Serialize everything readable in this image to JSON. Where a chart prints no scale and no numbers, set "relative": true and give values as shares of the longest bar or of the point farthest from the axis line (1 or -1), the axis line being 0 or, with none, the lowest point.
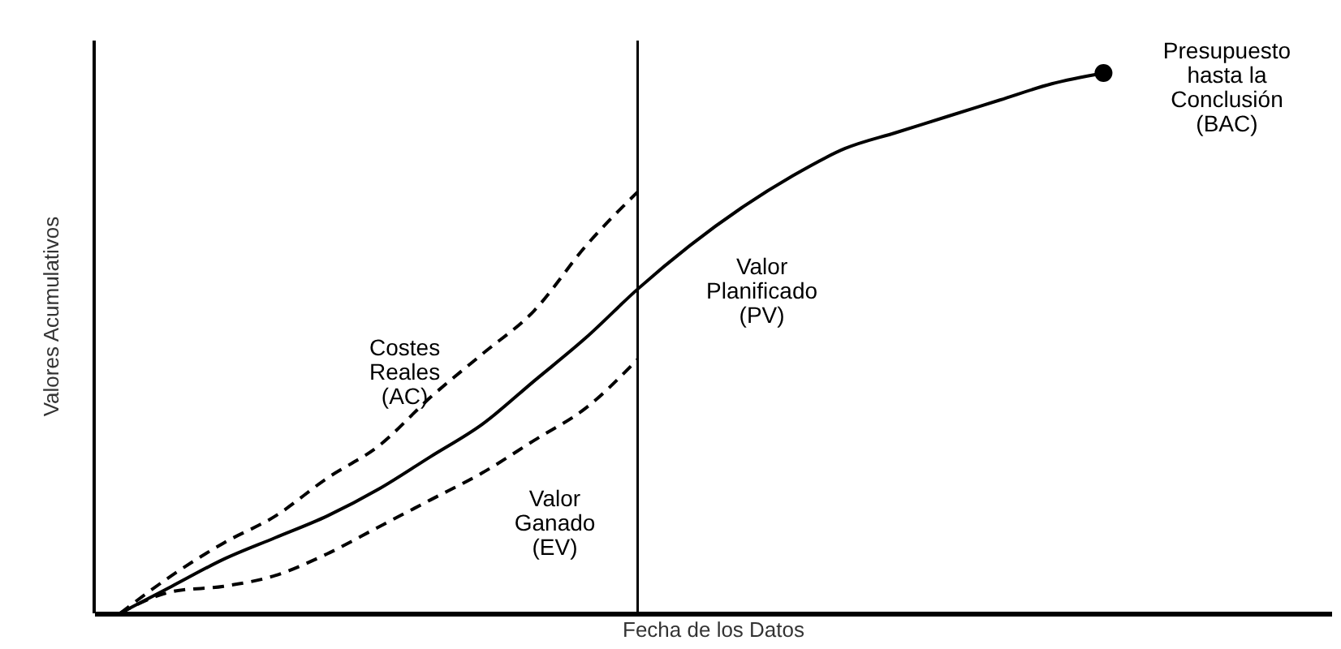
{
  "chart_data": {
    "type": "line",
    "relative": true,
    "xlabel": "Fecha de los Datos",
    "ylabel": "Valores Acumulativos",
    "categories": [
      null,
      null,
      null,
      null,
      null,
      null,
      null,
      null,
      null,
      null,
      null,
      null,
      null,
      null,
      null,
      null,
      null,
      null,
      null,
      null
    ],
    "series": [
      {
        "name": "Costes Reales (AC)",
        "color": "#000000",
        "line_style": "dashed",
        "values": [
          0,
          0.07,
          0.13,
          0.18,
          0.25,
          0.31,
          0.4,
          0.48,
          0.56,
          0.68,
          0.78,
          null,
          null,
          null,
          null,
          null,
          null,
          null,
          null,
          null
        ]
      },
      {
        "name": "Valor Ganado (EV)",
        "color": "#000000",
        "line_style": "dashed",
        "values": [
          0,
          0.04,
          0.05,
          0.07,
          0.11,
          0.16,
          0.21,
          0.26,
          0.32,
          0.38,
          0.47,
          null,
          null,
          null,
          null,
          null,
          null,
          null,
          null,
          null
        ]
      },
      {
        "name": "Valor Planificado (PV)",
        "color": "#000000",
        "line_style": "solid",
        "values": [
          0,
          0.05,
          0.1,
          0.14,
          0.18,
          0.23,
          0.29,
          0.35,
          0.43,
          0.51,
          0.6,
          0.68,
          0.75,
          0.81,
          0.86,
          0.89,
          0.92,
          0.95,
          0.98,
          1
        ]
      }
    ],
    "annotations": [
      "Presupuesto hasta la Conclusión (BAC)"
    ]
  }
}
